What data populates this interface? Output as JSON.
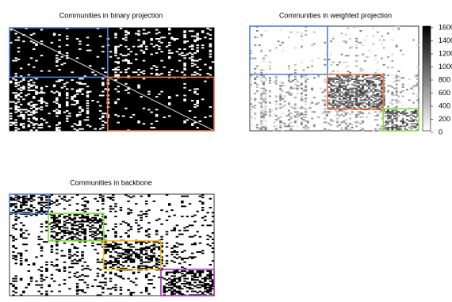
{
  "chart_data": [
    {
      "type": "heatmap",
      "title": "Communities in binary projection",
      "scheme": "binary",
      "size": 100,
      "communities": [
        {
          "color": "#4f7fd6",
          "range": [
            0,
            48
          ]
        },
        {
          "color": "#f0734a",
          "range": [
            48,
            100
          ]
        }
      ]
    },
    {
      "type": "heatmap",
      "title": "Communities in weighted projection",
      "scheme": "weighted",
      "size": 100,
      "communities": [
        {
          "color": "#4f7fd6",
          "range": [
            0,
            46
          ]
        },
        {
          "color": "#f0734a",
          "range": [
            46,
            79
          ]
        },
        {
          "color": "#7ee03c",
          "range": [
            79,
            100
          ]
        }
      ],
      "colorbar": {
        "ylim": [
          0,
          1600
        ],
        "yticks": [
          0,
          200,
          400,
          600,
          800,
          1000,
          1200,
          1400,
          1600
        ]
      }
    },
    {
      "type": "heatmap",
      "title": "Communities in backbone",
      "scheme": "backbone",
      "size": 100,
      "communities": [
        {
          "color": "#4f7fd6",
          "range": [
            0,
            19
          ]
        },
        {
          "color": "#7ee03c",
          "range": [
            19,
            46
          ]
        },
        {
          "color": "#f2c21b",
          "range": [
            46,
            74
          ]
        },
        {
          "color": "#a233b5",
          "range": [
            74,
            100
          ]
        }
      ]
    }
  ]
}
